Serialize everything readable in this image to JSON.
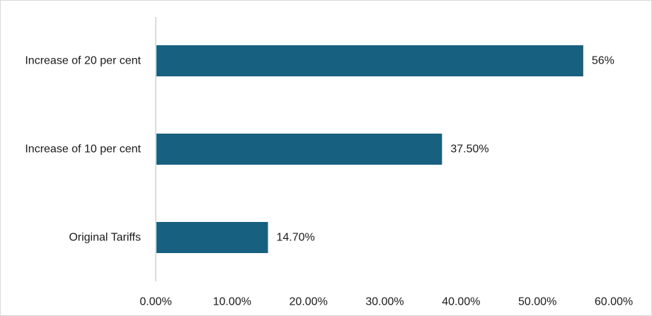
{
  "chart_data": {
    "type": "bar",
    "orientation": "horizontal",
    "categories": [
      "Increase of 20 per cent",
      "Increase of 10 per cent",
      "Original Tariffs"
    ],
    "values": [
      56,
      37.5,
      14.7
    ],
    "data_labels": [
      "56%",
      "37.50%",
      "14.70%"
    ],
    "xlim": [
      0,
      60
    ],
    "x_ticks": [
      0,
      10,
      20,
      30,
      40,
      50,
      60
    ],
    "x_tick_labels": [
      "0.00%",
      "10.00%",
      "20.00%",
      "30.00%",
      "40.00%",
      "50.00%",
      "60.00%"
    ],
    "grid": false,
    "legend": "none",
    "bar_color": "#17607f",
    "axis_color": "#d0d0d0"
  }
}
